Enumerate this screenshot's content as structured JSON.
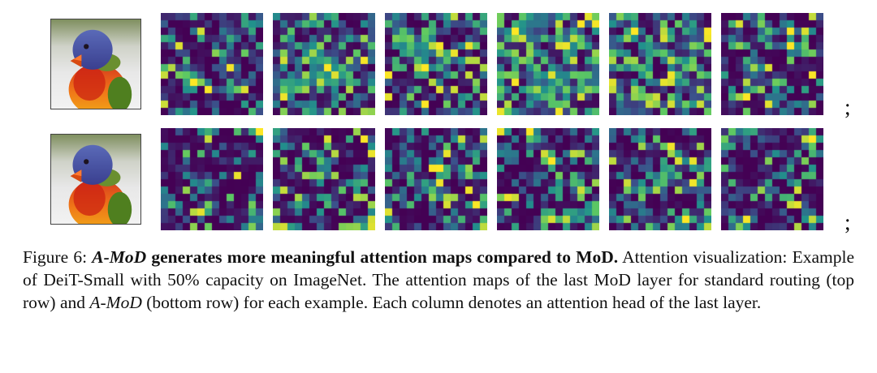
{
  "figure": {
    "semicolon": ";",
    "grid_size": 14,
    "colormap": {
      "name": "viridis",
      "anchors": [
        {
          "t": 0.0,
          "color": "#440154"
        },
        {
          "t": 0.25,
          "color": "#3b528b"
        },
        {
          "t": 0.5,
          "color": "#21918c"
        },
        {
          "t": 0.75,
          "color": "#5ec962"
        },
        {
          "t": 1.0,
          "color": "#fde725"
        }
      ]
    },
    "image_label": "rainbow-lorikeet-photo",
    "rows": [
      {
        "name": "standard-routing-top-row",
        "maps": [
          {
            "seed": 11,
            "exp": 3.2,
            "spikes": [
              [
                9,
                4,
                1.0
              ],
              [
                8,
                3,
                0.75
              ],
              [
                3,
                9,
                0.6
              ]
            ]
          },
          {
            "seed": 22,
            "exp": 1.6,
            "spikes": [
              [
                7,
                7,
                1.0
              ],
              [
                8,
                8,
                0.95
              ],
              [
                5,
                5,
                0.85
              ],
              [
                9,
                6,
                0.9
              ]
            ]
          },
          {
            "seed": 33,
            "exp": 2.6,
            "spikes": [
              [
                4,
                6,
                0.9
              ],
              [
                7,
                5,
                1.0
              ],
              [
                6,
                8,
                0.7
              ]
            ]
          },
          {
            "seed": 44,
            "exp": 1.4,
            "spikes": [
              [
                2,
                2,
                1.0
              ],
              [
                8,
                7,
                0.95
              ],
              [
                3,
                10,
                0.9
              ],
              [
                10,
                5,
                0.85
              ]
            ]
          },
          {
            "seed": 55,
            "exp": 1.6,
            "spikes": [
              [
                2,
                3,
                1.0
              ],
              [
                6,
                8,
                0.9
              ],
              [
                4,
                11,
                0.8
              ]
            ]
          },
          {
            "seed": 66,
            "exp": 2.8,
            "spikes": [
              [
                4,
                9,
                1.0
              ],
              [
                7,
                4,
                0.85
              ],
              [
                2,
                6,
                0.7
              ]
            ]
          }
        ]
      },
      {
        "name": "a-mod-bottom-row",
        "maps": [
          {
            "seed": 77,
            "exp": 3.8,
            "spikes": [
              [
                0,
                13,
                1.0
              ],
              [
                13,
                12,
                0.8
              ],
              [
                7,
                6,
                0.6
              ]
            ]
          },
          {
            "seed": 88,
            "exp": 3.2,
            "spikes": [
              [
                13,
                0,
                0.9
              ],
              [
                13,
                13,
                0.95
              ],
              [
                6,
                6,
                0.8
              ]
            ]
          },
          {
            "seed": 99,
            "exp": 3.0,
            "spikes": [
              [
                5,
                7,
                1.0
              ],
              [
                13,
                13,
                0.9
              ],
              [
                8,
                6,
                0.7
              ]
            ]
          },
          {
            "seed": 111,
            "exp": 3.0,
            "spikes": [
              [
                4,
                7,
                1.0
              ],
              [
                12,
                9,
                0.9
              ],
              [
                13,
                13,
                0.85
              ]
            ]
          },
          {
            "seed": 122,
            "exp": 3.2,
            "spikes": [
              [
                12,
                10,
                1.0
              ],
              [
                13,
                13,
                0.9
              ],
              [
                6,
                7,
                0.7
              ]
            ]
          },
          {
            "seed": 133,
            "exp": 3.4,
            "spikes": [
              [
                1,
                12,
                1.0
              ],
              [
                12,
                12,
                0.9
              ],
              [
                13,
                2,
                0.8
              ]
            ]
          }
        ]
      }
    ]
  },
  "caption": {
    "seg1": "Figure 6: ",
    "seg2": "A-MoD",
    "seg3": " generates more meaningful attention maps compared to MoD.",
    "seg4": " Attention visualization: Example of DeiT-Small with 50% capacity on ImageNet. The attention maps of the last MoD layer for standard routing (top row) and ",
    "seg5": "A-MoD",
    "seg6": " (bottom row) for each example. Each column denotes an attention head of the last layer."
  }
}
